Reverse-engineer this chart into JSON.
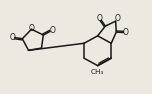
{
  "bg_color": "#ede8e0",
  "line_color": "#1a1a1a",
  "line_width": 1.1,
  "figsize": [
    1.52,
    0.94
  ],
  "dpi": 100,
  "xlim": [
    0,
    10
  ],
  "ylim": [
    0,
    6.2
  ],
  "fontsize_O": 5.5,
  "fontsize_CH3": 5.2
}
